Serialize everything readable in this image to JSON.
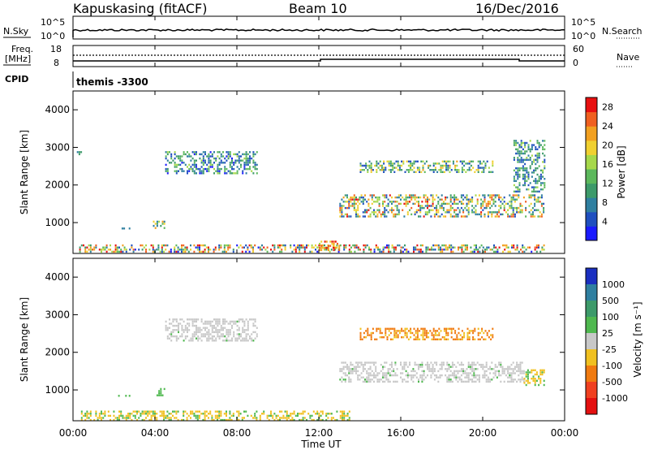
{
  "header": {
    "station": "Kapuskasing (fitACF)",
    "beam": "Beam 10",
    "date": "16/Dec/2016"
  },
  "panels": {
    "nsky_label": "N.Sky",
    "nsky_ticks": [
      "10^5",
      "10^0"
    ],
    "nsearch_label": "N.Search",
    "nsearch_ticks": [
      "10^5",
      "10^0"
    ],
    "freq_label_line1": "Freq.",
    "freq_label_line2": "[MHz]",
    "freq_ticks": [
      "18",
      "8"
    ],
    "nave_label": "Nave",
    "nave_ticks": [
      "60",
      "0"
    ],
    "cpid_label": "CPID",
    "cpid_value": "themis -3300"
  },
  "chart_data": [
    {
      "type": "heatmap",
      "name": "power",
      "xlabel": "",
      "ylabel": "Slant Range [km]",
      "xlim_hours": [
        0,
        24
      ],
      "ylim_km": [
        180,
        4500
      ],
      "yticks": [
        "1000",
        "2000",
        "3000",
        "4000"
      ],
      "colorbar_label": "Power [dB]",
      "colorbar_ticks": [
        "4",
        "8",
        "12",
        "16",
        "20",
        "24",
        "28"
      ],
      "colorbar_range": [
        0,
        30
      ],
      "regions": [
        {
          "t0": 0.3,
          "t1": 23.0,
          "r0": 200,
          "r1": 420,
          "v0": 2,
          "v1": 30
        },
        {
          "t0": 4.5,
          "t1": 9.0,
          "r0": 2300,
          "r1": 2900,
          "v0": 2,
          "v1": 16
        },
        {
          "t0": 0.1,
          "t1": 0.4,
          "r0": 2750,
          "r1": 2900,
          "v0": 4,
          "v1": 12
        },
        {
          "t0": 2.2,
          "t1": 2.8,
          "r0": 820,
          "r1": 870,
          "v0": 4,
          "v1": 8
        },
        {
          "t0": 3.9,
          "t1": 4.5,
          "r0": 850,
          "r1": 1050,
          "v0": 6,
          "v1": 22
        },
        {
          "t0": 13.0,
          "t1": 23.0,
          "r0": 1150,
          "r1": 1750,
          "v0": 4,
          "v1": 28
        },
        {
          "t0": 14.0,
          "t1": 20.5,
          "r0": 2350,
          "r1": 2650,
          "v0": 4,
          "v1": 22
        },
        {
          "t0": 21.5,
          "t1": 23.0,
          "r0": 1800,
          "r1": 3200,
          "v0": 4,
          "v1": 16
        },
        {
          "t0": 12.0,
          "t1": 13.0,
          "r0": 280,
          "r1": 520,
          "v0": 16,
          "v1": 30
        }
      ]
    },
    {
      "type": "heatmap",
      "name": "velocity",
      "xlabel": "Time UT",
      "ylabel": "Slant Range [km]",
      "xlim_hours": [
        0,
        24
      ],
      "ylim_km": [
        180,
        4500
      ],
      "yticks": [
        "1000",
        "2000",
        "3000",
        "4000"
      ],
      "xticks": [
        "00:00",
        "04:00",
        "08:00",
        "12:00",
        "16:00",
        "20:00",
        "00:00"
      ],
      "colorbar_label": "Velocity [m s⁻¹]",
      "colorbar_ticks": [
        "1000",
        "500",
        "100",
        "25",
        "-25",
        "-100",
        "-500",
        "-1000"
      ],
      "regions": [
        {
          "t0": 0.3,
          "t1": 13.5,
          "r0": 200,
          "r1": 450,
          "class": "-100"
        },
        {
          "t0": 4.5,
          "t1": 9.0,
          "r0": 2300,
          "r1": 2900,
          "class": "25"
        },
        {
          "t0": 13.0,
          "t1": 22.0,
          "r0": 1200,
          "r1": 1750,
          "class": "25"
        },
        {
          "t0": 14.0,
          "t1": 20.5,
          "r0": 2350,
          "r1": 2650,
          "class": "-500"
        },
        {
          "t0": 22.0,
          "t1": 23.0,
          "r0": 1150,
          "r1": 1550,
          "class": "-100"
        },
        {
          "t0": 2.2,
          "t1": 2.8,
          "r0": 820,
          "r1": 870,
          "class": "100"
        },
        {
          "t0": 3.9,
          "t1": 4.5,
          "r0": 850,
          "r1": 1050,
          "class": "100"
        }
      ]
    }
  ],
  "colors": {
    "power_scale": [
      "#1a1aff",
      "#1f4fbf",
      "#2f7fa0",
      "#3d9a6a",
      "#5cb85c",
      "#a6d84a",
      "#f0d030",
      "#f2a020",
      "#f06020",
      "#e81010"
    ],
    "velocity_scale": {
      "1000": "#1a2fc0",
      "500": "#2f7fa0",
      "100": "#4fb84f",
      "25": "#c8c8c8",
      "-25": "#c8c8c8",
      "-100": "#f0c020",
      "-500": "#f07a10",
      "-1000": "#e41010"
    }
  }
}
